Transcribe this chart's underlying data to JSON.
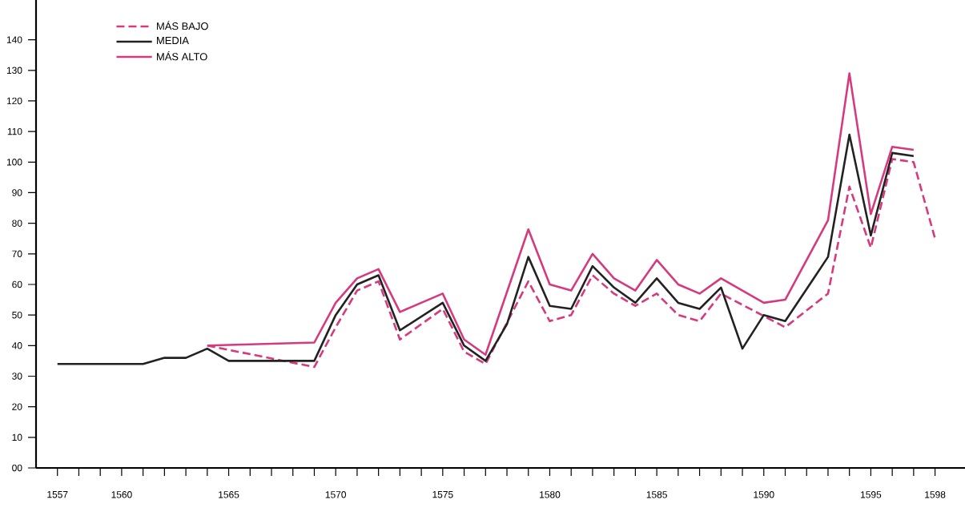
{
  "chart_data": {
    "type": "line",
    "series": [
      {
        "name": "MÁS BAJO",
        "color": "#d63a7e",
        "line_style": "dashed",
        "x": [
          1564,
          1569,
          1570,
          1571,
          1572,
          1573,
          1575,
          1576,
          1577,
          1579,
          1580,
          1581,
          1582,
          1583,
          1584,
          1585,
          1586,
          1587,
          1588,
          1591,
          1593,
          1594,
          1595,
          1596,
          1597,
          1598
        ],
        "values": [
          40,
          33,
          46,
          58,
          61,
          42,
          52,
          38,
          34,
          61,
          48,
          50,
          63,
          57,
          53,
          57,
          50,
          48,
          57,
          46,
          57,
          92,
          72,
          101,
          100,
          75
        ]
      },
      {
        "name": "MEDIA",
        "color": "#222222",
        "line_style": "solid",
        "x": [
          1557,
          1561,
          1562,
          1563,
          1564,
          1565,
          1569,
          1570,
          1571,
          1572,
          1573,
          1575,
          1576,
          1577,
          1578,
          1579,
          1580,
          1581,
          1582,
          1583,
          1584,
          1585,
          1586,
          1587,
          1588,
          1589,
          1590,
          1591,
          1593,
          1594,
          1595,
          1596,
          1597
        ],
        "values": [
          34,
          34,
          36,
          36,
          39,
          35,
          35,
          50,
          60,
          63,
          45,
          54,
          40,
          35,
          47,
          69,
          53,
          52,
          66,
          59,
          54,
          62,
          54,
          52,
          59,
          39,
          50,
          48,
          69,
          109,
          76,
          103,
          102
        ]
      },
      {
        "name": "MÁS ALTO",
        "color": "#d63a7e",
        "line_style": "solid",
        "x": [
          1564,
          1569,
          1570,
          1571,
          1572,
          1573,
          1575,
          1576,
          1577,
          1579,
          1580,
          1581,
          1582,
          1583,
          1584,
          1585,
          1586,
          1587,
          1588,
          1590,
          1591,
          1593,
          1594,
          1595,
          1596,
          1597
        ],
        "values": [
          40,
          41,
          54,
          62,
          65,
          51,
          57,
          42,
          37,
          78,
          60,
          58,
          70,
          62,
          58,
          68,
          60,
          57,
          62,
          54,
          55,
          81,
          129,
          83,
          105,
          104
        ]
      }
    ],
    "xlim": [
      1556,
      1599.4
    ],
    "ylim": [
      0,
      153
    ],
    "xticks": [
      1557,
      {
        "value": 1558,
        "label": null
      },
      {
        "value": 1559,
        "label": null
      },
      1560,
      {
        "value": 1561,
        "label": null
      },
      {
        "value": 1562,
        "label": null
      },
      {
        "value": 1563,
        "label": null
      },
      {
        "value": 1564,
        "label": null
      },
      1565,
      {
        "value": 1566,
        "label": null
      },
      {
        "value": 1567,
        "label": null
      },
      {
        "value": 1568,
        "label": null
      },
      {
        "value": 1569,
        "label": null
      },
      1570,
      {
        "value": 1571,
        "label": null
      },
      {
        "value": 1572,
        "label": null
      },
      {
        "value": 1573,
        "label": null
      },
      {
        "value": 1574,
        "label": null
      },
      1575,
      {
        "value": 1576,
        "label": null
      },
      {
        "value": 1577,
        "label": null
      },
      {
        "value": 1578,
        "label": null
      },
      {
        "value": 1579,
        "label": null
      },
      1580,
      {
        "value": 1581,
        "label": null
      },
      {
        "value": 1582,
        "label": null
      },
      {
        "value": 1583,
        "label": null
      },
      {
        "value": 1584,
        "label": null
      },
      1585,
      {
        "value": 1586,
        "label": null
      },
      {
        "value": 1587,
        "label": null
      },
      {
        "value": 1588,
        "label": null
      },
      {
        "value": 1589,
        "label": null
      },
      1590,
      {
        "value": 1591,
        "label": null
      },
      {
        "value": 1592,
        "label": null
      },
      {
        "value": 1593,
        "label": null
      },
      {
        "value": 1594,
        "label": null
      },
      1595,
      {
        "value": 1596,
        "label": null
      },
      {
        "value": 1597,
        "label": null
      },
      1598
    ],
    "yticks": [
      {
        "value": 0,
        "label": "00"
      },
      10,
      20,
      30,
      40,
      50,
      60,
      70,
      80,
      90,
      100,
      110,
      120,
      130,
      140
    ],
    "legend": "top left"
  }
}
